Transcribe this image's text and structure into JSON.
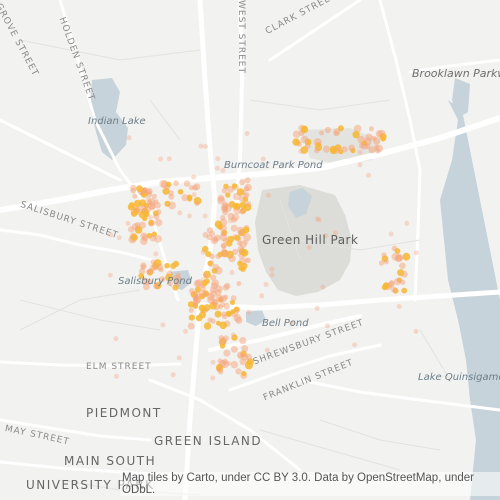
{
  "map": {
    "labels": {
      "grove_street": "GROVE STREET",
      "holden_street": "HOLDEN STREET",
      "clark_street": "CLARK STREET",
      "west_street": "WEST STREET",
      "brooklawn_parkway": "Brooklawn Parkway",
      "indian_lake": "Indian Lake",
      "burncoat_park_pond": "Burncoat Park Pond",
      "green_hill_park": "Green Hill Park",
      "salisbury_street": "SALISBURY STREET",
      "salisbury_pond": "Salisbury Pond",
      "bell_pond": "Bell Pond",
      "shrewsbury_street": "SHREWSBURY STREET",
      "franklin_street": "FRANKLIN STREET",
      "elm_street": "ELM STREET",
      "may_street": "MAY STREET",
      "piedmont": "PIEDMONT",
      "green_island": "GREEN ISLAND",
      "main_south": "MAIN SOUTH",
      "university_park": "UNIVERSITY PARK",
      "lake_quinsigamond": "Lake Quinsigamond"
    },
    "attribution": "Map tiles by Carto, under CC BY 3.0. Data by OpenStreetMap, under ODbL.",
    "colors": {
      "background": "#f2f2f0",
      "water": "#c7d3da",
      "park": "#dcdcd8",
      "road": "#ffffff",
      "point_light": "#f6a47a",
      "point_dense": "#f7b733"
    }
  }
}
